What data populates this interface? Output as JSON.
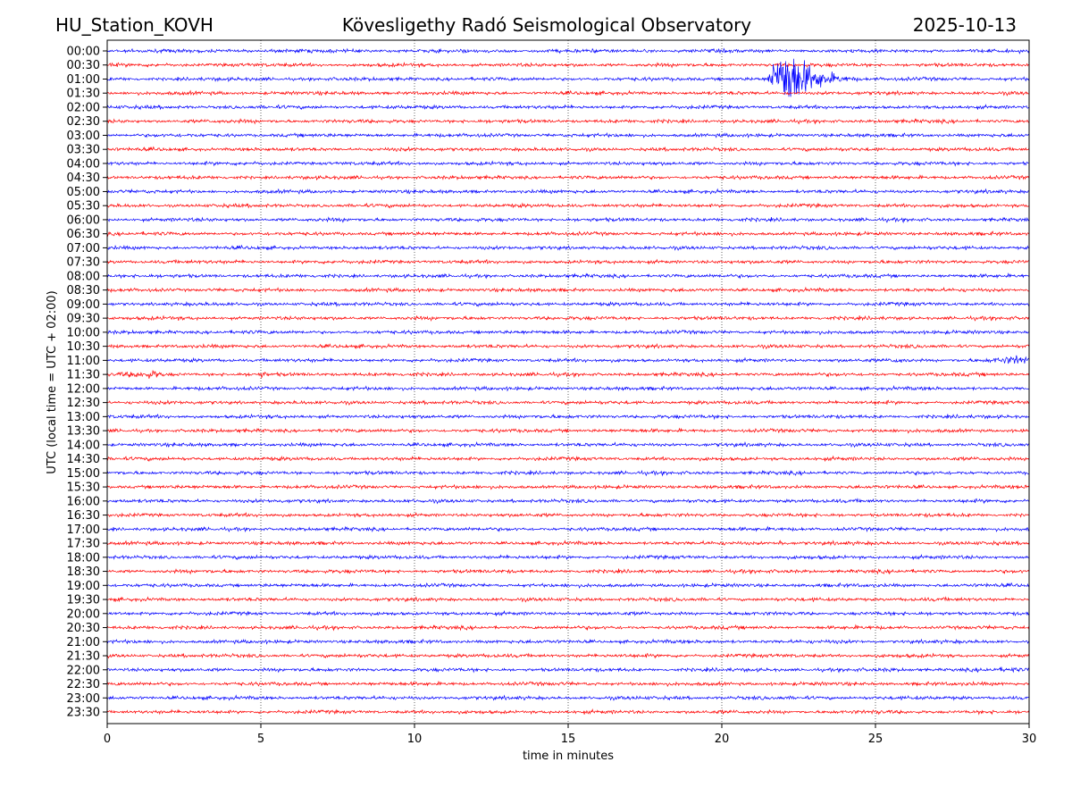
{
  "header": {
    "station": "HU_Station_KOVH",
    "title": "Kövesligethy Radó Seismological Observatory",
    "date": "2025-10-13"
  },
  "chart_data": {
    "type": "line",
    "subtype": "helicorder",
    "title": "Kövesligethy Radó Seismological Observatory",
    "xlabel": "time in minutes",
    "ylabel": "UTC (local time = UTC + 02:00)",
    "xlim": [
      0,
      30
    ],
    "x_ticks": [
      "0",
      "5",
      "10",
      "15",
      "20",
      "25",
      "30"
    ],
    "x_tick_values": [
      0,
      5,
      10,
      15,
      20,
      25,
      30
    ],
    "grid": "vertical dotted at each x tick",
    "row_labels": [
      "00:00",
      "00:30",
      "01:00",
      "01:30",
      "02:00",
      "02:30",
      "03:00",
      "03:30",
      "04:00",
      "04:30",
      "05:00",
      "05:30",
      "06:00",
      "06:30",
      "07:00",
      "07:30",
      "08:00",
      "08:30",
      "09:00",
      "09:30",
      "10:00",
      "10:30",
      "11:00",
      "11:30",
      "12:00",
      "12:30",
      "13:00",
      "13:30",
      "14:00",
      "14:30",
      "15:00",
      "15:30",
      "16:00",
      "16:30",
      "17:00",
      "17:30",
      "18:00",
      "18:30",
      "19:00",
      "19:30",
      "20:00",
      "20:30",
      "21:00",
      "21:30",
      "22:00",
      "22:30",
      "23:00",
      "23:30"
    ],
    "row_colors": [
      "#0000ff",
      "#ff0000"
    ],
    "events": [
      {
        "row": "01:00",
        "start_min": 21.5,
        "peak_min": 22.2,
        "end_min": 25.5,
        "amplitude_rows": 2.0
      },
      {
        "row": "11:00",
        "start_min": 25.4,
        "peak_min": 25.6,
        "end_min": 26.2,
        "amplitude_rows": 0.2
      },
      {
        "row": "11:00",
        "start_min": 28.5,
        "peak_min": 29.7,
        "end_min": 30,
        "amplitude_rows": 0.3
      },
      {
        "row": "11:30",
        "start_min": 0,
        "peak_min": 1.5,
        "end_min": 1.8,
        "amplitude_rows": 0.25
      },
      {
        "row": "11:30",
        "start_min": 4.8,
        "peak_min": 5.0,
        "end_min": 5.2,
        "amplitude_rows": 0.2
      },
      {
        "row": "17:30",
        "start_min": 21.8,
        "peak_min": 21.9,
        "end_min": 22.0,
        "amplitude_rows": 0.25
      },
      {
        "row": "22:00",
        "start_min": 25.2,
        "peak_min": 25.4,
        "end_min": 25.7,
        "amplitude_rows": 0.15
      },
      {
        "row": "22:00",
        "start_min": 27,
        "peak_min": 29.5,
        "end_min": 30,
        "amplitude_rows": 0.15
      },
      {
        "row": "23:30",
        "start_min": 24.5,
        "peak_min": 25,
        "end_min": 25.6,
        "amplitude_rows": 0.15
      }
    ]
  }
}
